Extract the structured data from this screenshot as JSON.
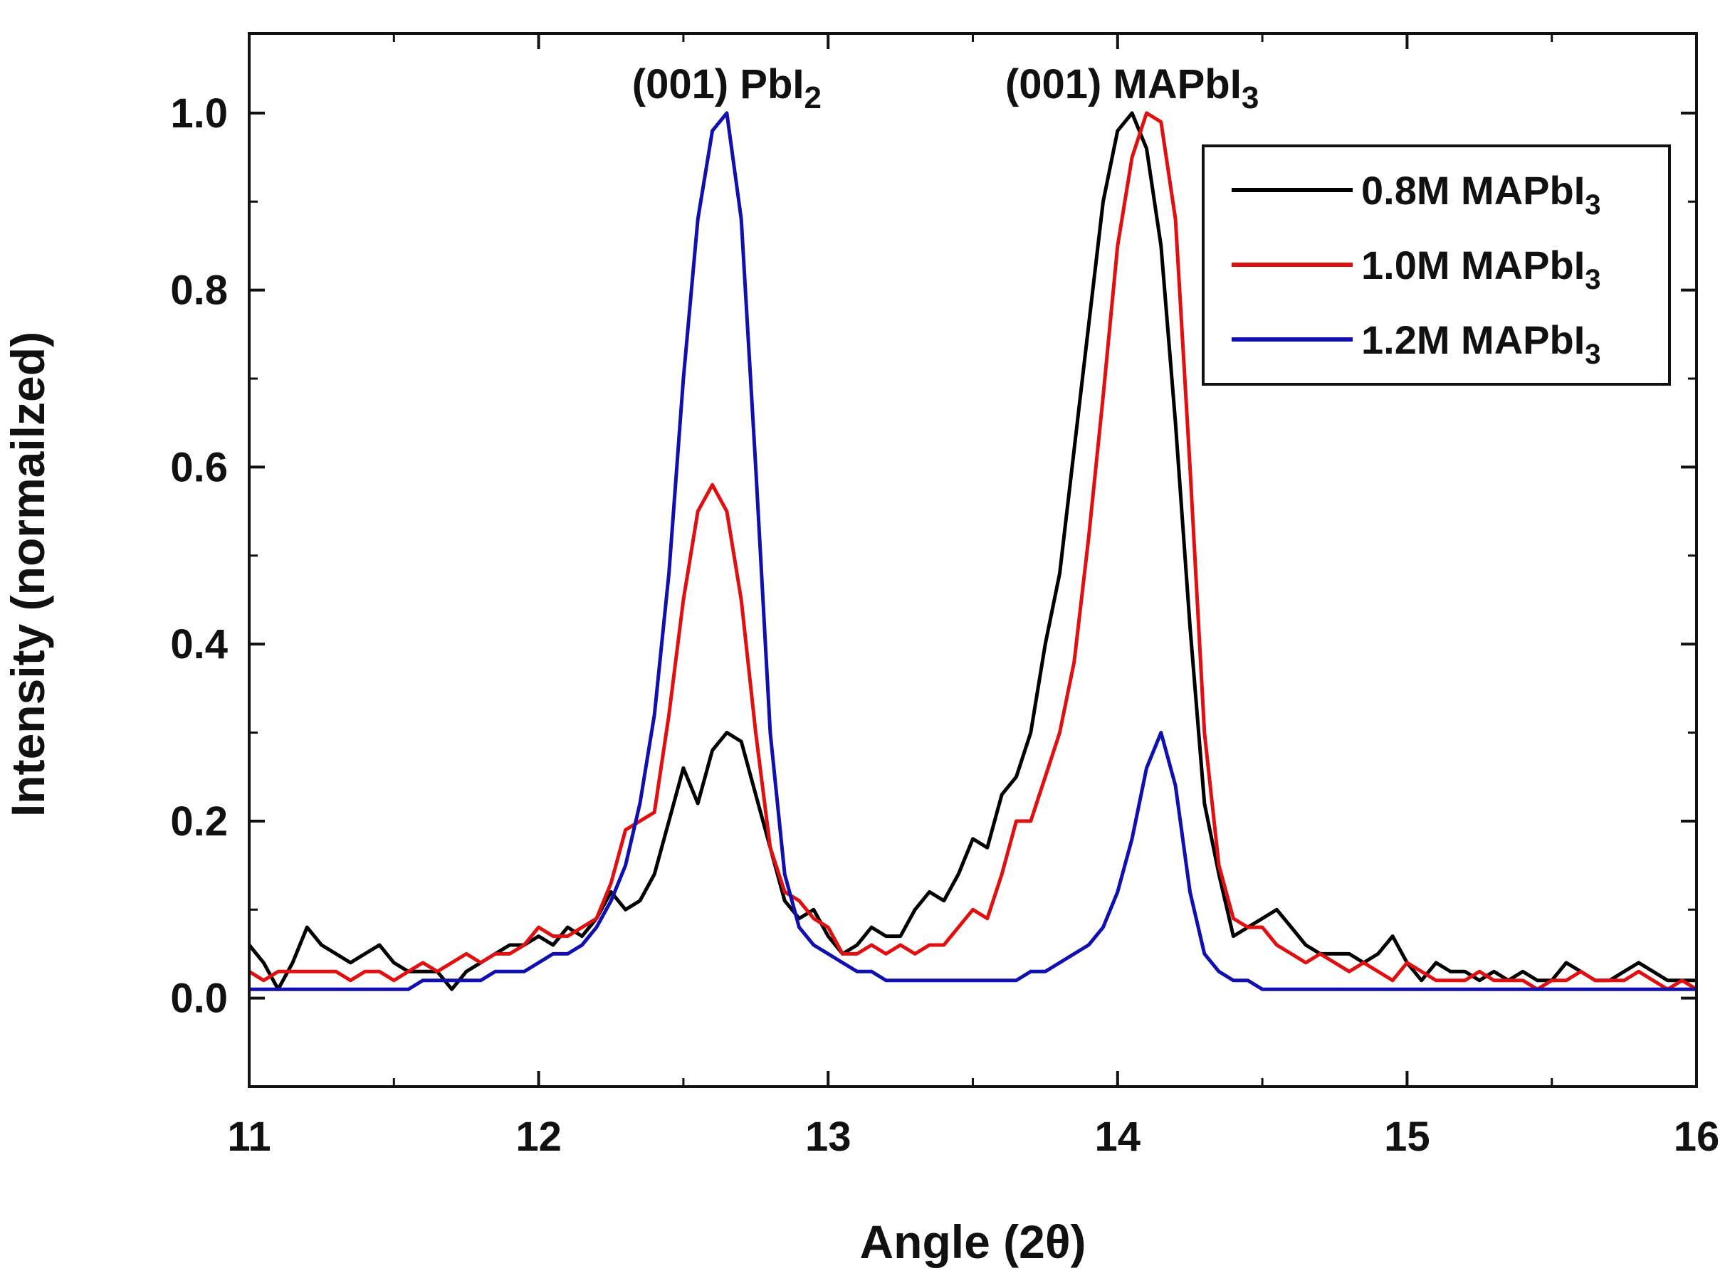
{
  "chart_data": {
    "type": "line",
    "title": "",
    "xlabel": "Angle (2θ)",
    "ylabel": "Intensity (normailzed)",
    "xlim": [
      11,
      16
    ],
    "ylim": [
      -0.1,
      1.09
    ],
    "x_ticks": [
      "11",
      "12",
      "13",
      "14",
      "15",
      "16"
    ],
    "y_ticks": [
      "0.0",
      "0.2",
      "0.4",
      "0.6",
      "0.8",
      "1.0"
    ],
    "grid": false,
    "legend_position": "top-right",
    "annotations": [
      {
        "base": "(001) PbI",
        "sub": "2",
        "x": 12.65,
        "y": 1.04
      },
      {
        "base": "(001) MAPbI",
        "sub": "3",
        "x": 14.05,
        "y": 1.04
      }
    ],
    "series": [
      {
        "name": "0.8M MAPbI",
        "name_sub": "3",
        "color": "#000000",
        "x": [
          11.0,
          11.05,
          11.1,
          11.15,
          11.2,
          11.25,
          11.3,
          11.35,
          11.4,
          11.45,
          11.5,
          11.55,
          11.6,
          11.65,
          11.7,
          11.75,
          11.8,
          11.85,
          11.9,
          11.95,
          12.0,
          12.05,
          12.1,
          12.15,
          12.2,
          12.25,
          12.3,
          12.35,
          12.4,
          12.45,
          12.5,
          12.55,
          12.6,
          12.65,
          12.7,
          12.75,
          12.8,
          12.85,
          12.9,
          12.95,
          13.0,
          13.05,
          13.1,
          13.15,
          13.2,
          13.25,
          13.3,
          13.35,
          13.4,
          13.45,
          13.5,
          13.55,
          13.6,
          13.65,
          13.7,
          13.75,
          13.8,
          13.85,
          13.9,
          13.95,
          14.0,
          14.05,
          14.1,
          14.15,
          14.2,
          14.25,
          14.3,
          14.35,
          14.4,
          14.45,
          14.5,
          14.55,
          14.6,
          14.65,
          14.7,
          14.75,
          14.8,
          14.85,
          14.9,
          14.95,
          15.0,
          15.05,
          15.1,
          15.15,
          15.2,
          15.25,
          15.3,
          15.35,
          15.4,
          15.45,
          15.5,
          15.55,
          15.6,
          15.65,
          15.7,
          15.75,
          15.8,
          15.85,
          15.9,
          15.95,
          16.0
        ],
        "values": [
          0.06,
          0.04,
          0.01,
          0.04,
          0.08,
          0.06,
          0.05,
          0.04,
          0.05,
          0.06,
          0.04,
          0.03,
          0.03,
          0.03,
          0.01,
          0.03,
          0.04,
          0.05,
          0.06,
          0.06,
          0.07,
          0.06,
          0.08,
          0.07,
          0.09,
          0.12,
          0.1,
          0.11,
          0.14,
          0.2,
          0.26,
          0.22,
          0.28,
          0.3,
          0.29,
          0.23,
          0.17,
          0.11,
          0.09,
          0.1,
          0.07,
          0.05,
          0.06,
          0.08,
          0.07,
          0.07,
          0.1,
          0.12,
          0.11,
          0.14,
          0.18,
          0.17,
          0.23,
          0.25,
          0.3,
          0.4,
          0.48,
          0.62,
          0.76,
          0.9,
          0.98,
          1.0,
          0.96,
          0.85,
          0.65,
          0.42,
          0.22,
          0.14,
          0.07,
          0.08,
          0.09,
          0.1,
          0.08,
          0.06,
          0.05,
          0.05,
          0.05,
          0.04,
          0.05,
          0.07,
          0.04,
          0.02,
          0.04,
          0.03,
          0.03,
          0.02,
          0.03,
          0.02,
          0.03,
          0.02,
          0.02,
          0.04,
          0.03,
          0.02,
          0.02,
          0.03,
          0.04,
          0.03,
          0.02,
          0.02,
          0.02
        ]
      },
      {
        "name": "1.0M MAPbI",
        "name_sub": "3",
        "color": "#e01010",
        "x": [
          11.0,
          11.05,
          11.1,
          11.15,
          11.2,
          11.25,
          11.3,
          11.35,
          11.4,
          11.45,
          11.5,
          11.55,
          11.6,
          11.65,
          11.7,
          11.75,
          11.8,
          11.85,
          11.9,
          11.95,
          12.0,
          12.05,
          12.1,
          12.15,
          12.2,
          12.25,
          12.3,
          12.35,
          12.4,
          12.45,
          12.5,
          12.55,
          12.6,
          12.65,
          12.7,
          12.75,
          12.8,
          12.85,
          12.9,
          12.95,
          13.0,
          13.05,
          13.1,
          13.15,
          13.2,
          13.25,
          13.3,
          13.35,
          13.4,
          13.45,
          13.5,
          13.55,
          13.6,
          13.65,
          13.7,
          13.75,
          13.8,
          13.85,
          13.9,
          13.95,
          14.0,
          14.05,
          14.1,
          14.15,
          14.2,
          14.25,
          14.3,
          14.35,
          14.4,
          14.45,
          14.5,
          14.55,
          14.6,
          14.65,
          14.7,
          14.75,
          14.8,
          14.85,
          14.9,
          14.95,
          15.0,
          15.05,
          15.1,
          15.15,
          15.2,
          15.25,
          15.3,
          15.35,
          15.4,
          15.45,
          15.5,
          15.55,
          15.6,
          15.65,
          15.7,
          15.75,
          15.8,
          15.85,
          15.9,
          15.95,
          16.0
        ],
        "values": [
          0.03,
          0.02,
          0.03,
          0.03,
          0.03,
          0.03,
          0.03,
          0.02,
          0.03,
          0.03,
          0.02,
          0.03,
          0.04,
          0.03,
          0.04,
          0.05,
          0.04,
          0.05,
          0.05,
          0.06,
          0.08,
          0.07,
          0.07,
          0.08,
          0.09,
          0.13,
          0.19,
          0.2,
          0.21,
          0.32,
          0.45,
          0.55,
          0.58,
          0.55,
          0.45,
          0.3,
          0.17,
          0.12,
          0.11,
          0.09,
          0.08,
          0.05,
          0.05,
          0.06,
          0.05,
          0.06,
          0.05,
          0.06,
          0.06,
          0.08,
          0.1,
          0.09,
          0.14,
          0.2,
          0.2,
          0.25,
          0.3,
          0.38,
          0.52,
          0.68,
          0.85,
          0.95,
          1.0,
          0.99,
          0.88,
          0.6,
          0.3,
          0.15,
          0.09,
          0.08,
          0.08,
          0.06,
          0.05,
          0.04,
          0.05,
          0.04,
          0.03,
          0.04,
          0.03,
          0.02,
          0.04,
          0.03,
          0.02,
          0.02,
          0.02,
          0.03,
          0.02,
          0.02,
          0.02,
          0.01,
          0.02,
          0.02,
          0.03,
          0.02,
          0.02,
          0.02,
          0.03,
          0.02,
          0.01,
          0.02,
          0.01
        ]
      },
      {
        "name": "1.2M MAPbI",
        "name_sub": "3",
        "color": "#1010b0",
        "x": [
          11.0,
          11.05,
          11.1,
          11.15,
          11.2,
          11.25,
          11.3,
          11.35,
          11.4,
          11.45,
          11.5,
          11.55,
          11.6,
          11.65,
          11.7,
          11.75,
          11.8,
          11.85,
          11.9,
          11.95,
          12.0,
          12.05,
          12.1,
          12.15,
          12.2,
          12.25,
          12.3,
          12.35,
          12.4,
          12.45,
          12.5,
          12.55,
          12.6,
          12.65,
          12.7,
          12.75,
          12.8,
          12.85,
          12.9,
          12.95,
          13.0,
          13.05,
          13.1,
          13.15,
          13.2,
          13.25,
          13.3,
          13.35,
          13.4,
          13.45,
          13.5,
          13.55,
          13.6,
          13.65,
          13.7,
          13.75,
          13.8,
          13.85,
          13.9,
          13.95,
          14.0,
          14.05,
          14.1,
          14.15,
          14.2,
          14.25,
          14.3,
          14.35,
          14.4,
          14.45,
          14.5,
          14.55,
          14.6,
          14.65,
          14.7,
          14.75,
          14.8,
          14.85,
          14.9,
          14.95,
          15.0,
          15.05,
          15.1,
          15.15,
          15.2,
          15.25,
          15.3,
          15.35,
          15.4,
          15.45,
          15.5,
          15.55,
          15.6,
          15.65,
          15.7,
          15.75,
          15.8,
          15.85,
          15.9,
          15.95,
          16.0
        ],
        "values": [
          0.01,
          0.01,
          0.01,
          0.01,
          0.01,
          0.01,
          0.01,
          0.01,
          0.01,
          0.01,
          0.01,
          0.01,
          0.02,
          0.02,
          0.02,
          0.02,
          0.02,
          0.03,
          0.03,
          0.03,
          0.04,
          0.05,
          0.05,
          0.06,
          0.08,
          0.11,
          0.15,
          0.22,
          0.32,
          0.48,
          0.7,
          0.88,
          0.98,
          1.0,
          0.88,
          0.6,
          0.3,
          0.14,
          0.08,
          0.06,
          0.05,
          0.04,
          0.03,
          0.03,
          0.02,
          0.02,
          0.02,
          0.02,
          0.02,
          0.02,
          0.02,
          0.02,
          0.02,
          0.02,
          0.03,
          0.03,
          0.04,
          0.05,
          0.06,
          0.08,
          0.12,
          0.18,
          0.26,
          0.3,
          0.24,
          0.12,
          0.05,
          0.03,
          0.02,
          0.02,
          0.01,
          0.01,
          0.01,
          0.01,
          0.01,
          0.01,
          0.01,
          0.01,
          0.01,
          0.01,
          0.01,
          0.01,
          0.01,
          0.01,
          0.01,
          0.01,
          0.01,
          0.01,
          0.01,
          0.01,
          0.01,
          0.01,
          0.01,
          0.01,
          0.01,
          0.01,
          0.01,
          0.01,
          0.01,
          0.01,
          0.01
        ]
      }
    ]
  }
}
